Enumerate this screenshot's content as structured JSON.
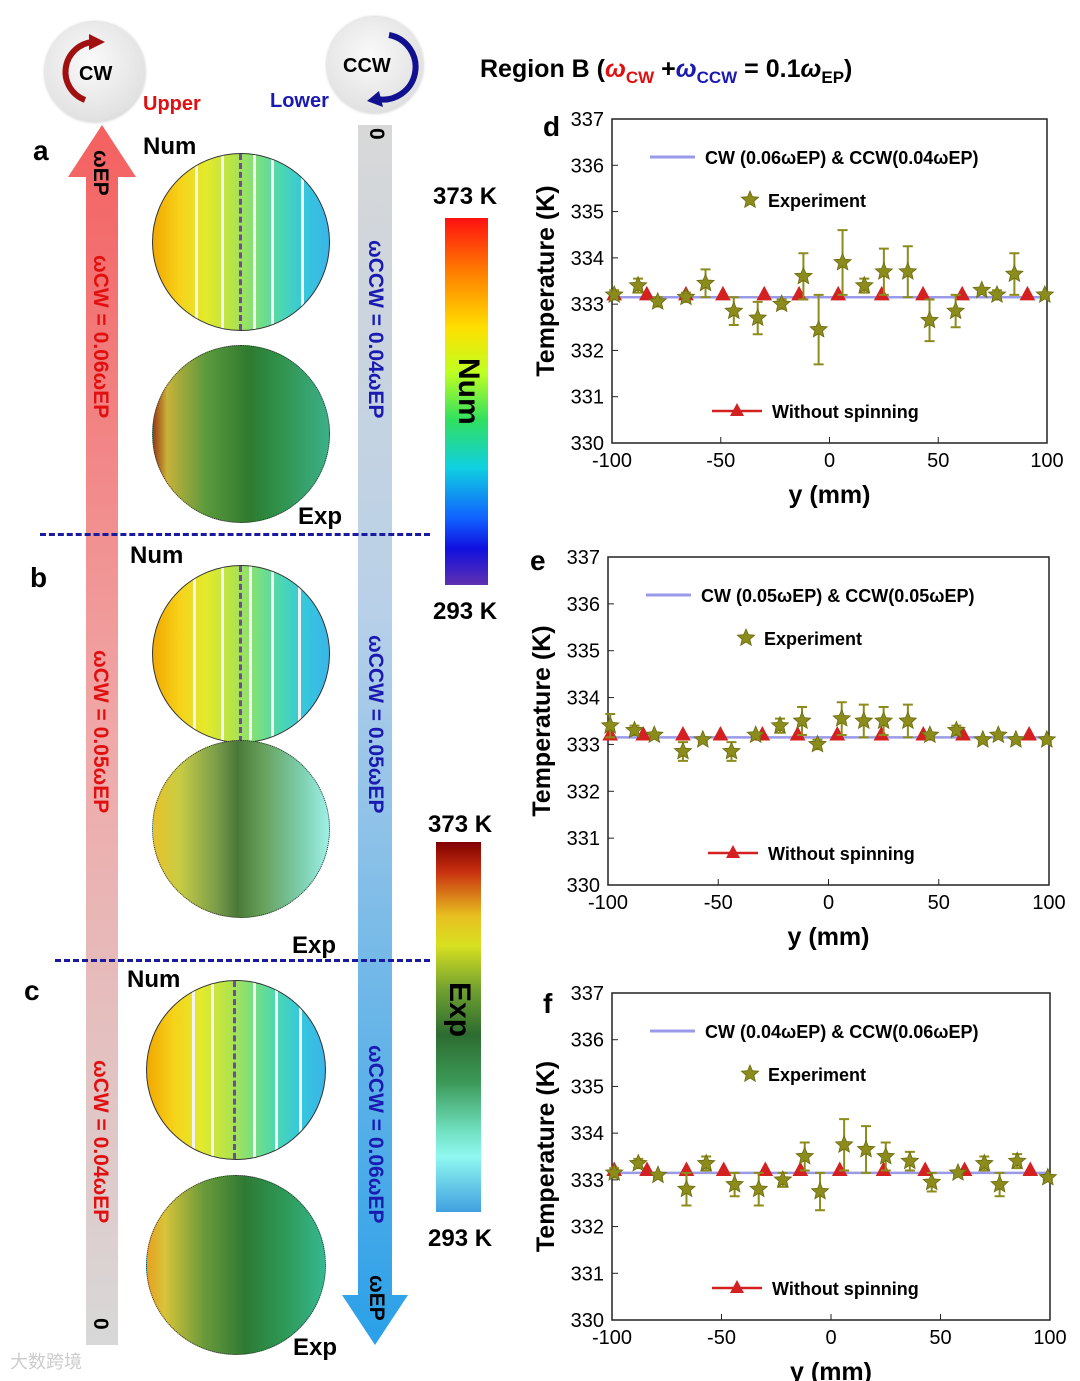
{
  "header": {
    "title_prefix": "Region B (",
    "w_cw": "ω",
    "cw_sub": "CW",
    "plus": " +",
    "w_ccw": "ω",
    "ccw_sub": "CCW",
    "eq": " = 0.1",
    "w_ep": "ω",
    "ep_sub": "EP",
    "close": ")"
  },
  "left": {
    "cw_ball": "CW",
    "ccw_ball": "CCW",
    "upper": "Upper",
    "lower": "Lower",
    "panel_labels": [
      "a",
      "b",
      "c"
    ],
    "num": "Num",
    "exp": "Exp",
    "red_arrow_top": "ωEP",
    "red_arrow_bottom": "0",
    "blue_arrow_top": "0",
    "blue_arrow_bottom": "ωEP",
    "cw_labels": [
      "ωCW = 0.06ωEP",
      "ωCW = 0.05ωEP",
      "ωCW = 0.04ωEP"
    ],
    "ccw_labels": [
      "ωCCW = 0.04ωEP",
      "ωCCW = 0.05ωEP",
      "ωCCW = 0.06ωEP"
    ],
    "num_bar": {
      "max": "373 K",
      "min": "293 K",
      "label": "Num"
    },
    "exp_bar": {
      "max": "373 K",
      "min": "293 K",
      "label": "Exp"
    }
  },
  "colors": {
    "experiment": "#8c8c1c",
    "without": "#d42020",
    "line": "#9a9ae8",
    "cw": "#e01010",
    "ccw": "#1a1ab0"
  },
  "watermark": "大数跨境",
  "chart_data": [
    {
      "type": "scatter",
      "panel": "d",
      "xlabel": "y (mm)",
      "ylabel": "Temperature (K)",
      "xlim": [
        -100,
        100
      ],
      "ylim": [
        330,
        337
      ],
      "xticks": [
        "-100",
        "-50",
        "0",
        "50",
        "100"
      ],
      "yticks": [
        "330",
        "331",
        "332",
        "333",
        "334",
        "335",
        "336",
        "337"
      ],
      "legend": {
        "line": "CW (0.06ωEP) & CCW(0.04ωEP)",
        "exp": "Experiment",
        "without": "Without spinning"
      },
      "line_value": 333.15,
      "experiment": {
        "x": [
          -99,
          -88,
          -79,
          -66,
          -57,
          -44,
          -33,
          -22,
          -12,
          -5,
          6,
          16,
          25,
          36,
          46,
          58,
          70,
          77,
          85,
          99
        ],
        "y": [
          333.2,
          333.4,
          333.05,
          333.15,
          333.45,
          332.85,
          332.7,
          333.0,
          333.6,
          332.45,
          333.9,
          333.4,
          333.7,
          333.7,
          332.65,
          332.85,
          333.3,
          333.2,
          333.65,
          333.2
        ],
        "err": [
          0.1,
          0.15,
          0.1,
          0.1,
          0.3,
          0.3,
          0.35,
          0.1,
          0.5,
          0.75,
          0.7,
          0.15,
          0.5,
          0.55,
          0.45,
          0.35,
          0.05,
          0.1,
          0.45,
          0.05
        ]
      },
      "without_spinning": {
        "x": [
          -99,
          -84,
          -66,
          -49,
          -30,
          -14,
          4,
          24,
          43,
          61,
          91
        ],
        "y": [
          333.2,
          333.2,
          333.2,
          333.2,
          333.2,
          333.2,
          333.2,
          333.2,
          333.2,
          333.2,
          333.2
        ]
      }
    },
    {
      "type": "scatter",
      "panel": "e",
      "xlabel": "y (mm)",
      "ylabel": "Temperature (K)",
      "xlim": [
        -100,
        100
      ],
      "ylim": [
        330,
        337
      ],
      "xticks": [
        "-100",
        "-50",
        "0",
        "50",
        "100"
      ],
      "yticks": [
        "330",
        "331",
        "332",
        "333",
        "334",
        "335",
        "336",
        "337"
      ],
      "legend": {
        "line": "CW (0.05ωEP) & CCW(0.05ωEP)",
        "exp": "Experiment",
        "without": "Without spinning"
      },
      "line_value": 333.15,
      "experiment": {
        "x": [
          -99,
          -88,
          -79,
          -66,
          -57,
          -44,
          -33,
          -22,
          -12,
          -5,
          6,
          16,
          25,
          36,
          46,
          58,
          70,
          77,
          85,
          99
        ],
        "y": [
          333.4,
          333.3,
          333.2,
          332.85,
          333.1,
          332.85,
          333.2,
          333.4,
          333.5,
          333.0,
          333.55,
          333.5,
          333.5,
          333.5,
          333.2,
          333.3,
          333.1,
          333.2,
          333.1,
          333.1
        ],
        "err": [
          0.25,
          0.1,
          0.05,
          0.2,
          0.05,
          0.2,
          0.05,
          0.15,
          0.3,
          0.1,
          0.35,
          0.35,
          0.3,
          0.35,
          0.05,
          0.1,
          0.05,
          0.05,
          0.05,
          0.05
        ]
      },
      "without_spinning": {
        "x": [
          -99,
          -84,
          -66,
          -49,
          -30,
          -14,
          4,
          24,
          43,
          61,
          91
        ],
        "y": [
          333.2,
          333.2,
          333.2,
          333.2,
          333.2,
          333.2,
          333.2,
          333.2,
          333.2,
          333.2,
          333.2
        ]
      }
    },
    {
      "type": "scatter",
      "panel": "f",
      "xlabel": "y (mm)",
      "ylabel": "Temperature (K)",
      "xlim": [
        -100,
        100
      ],
      "ylim": [
        330,
        337
      ],
      "xticks": [
        "-100",
        "-50",
        "0",
        "50",
        "100"
      ],
      "yticks": [
        "330",
        "331",
        "332",
        "333",
        "334",
        "335",
        "336",
        "337"
      ],
      "legend": {
        "line": "CW (0.04ωEP) & CCW(0.06ωEP)",
        "exp": "Experiment",
        "without": "Without spinning"
      },
      "line_value": 333.15,
      "experiment": {
        "x": [
          -99,
          -88,
          -79,
          -66,
          -57,
          -44,
          -33,
          -22,
          -12,
          -5,
          6,
          16,
          25,
          36,
          46,
          58,
          70,
          77,
          85,
          99
        ],
        "y": [
          333.15,
          333.35,
          333.1,
          332.8,
          333.35,
          332.9,
          332.8,
          333.0,
          333.5,
          332.75,
          333.75,
          333.65,
          333.5,
          333.4,
          332.95,
          333.15,
          333.35,
          332.9,
          333.4,
          333.05
        ],
        "err": [
          0.1,
          0.1,
          0.05,
          0.35,
          0.15,
          0.25,
          0.35,
          0.15,
          0.3,
          0.4,
          0.55,
          0.5,
          0.3,
          0.2,
          0.2,
          0.05,
          0.15,
          0.25,
          0.15,
          0.05
        ]
      },
      "without_spinning": {
        "x": [
          -99,
          -84,
          -66,
          -49,
          -30,
          -14,
          4,
          24,
          43,
          61,
          91
        ],
        "y": [
          333.2,
          333.2,
          333.2,
          333.2,
          333.2,
          333.2,
          333.2,
          333.2,
          333.2,
          333.2,
          333.2
        ]
      }
    }
  ]
}
